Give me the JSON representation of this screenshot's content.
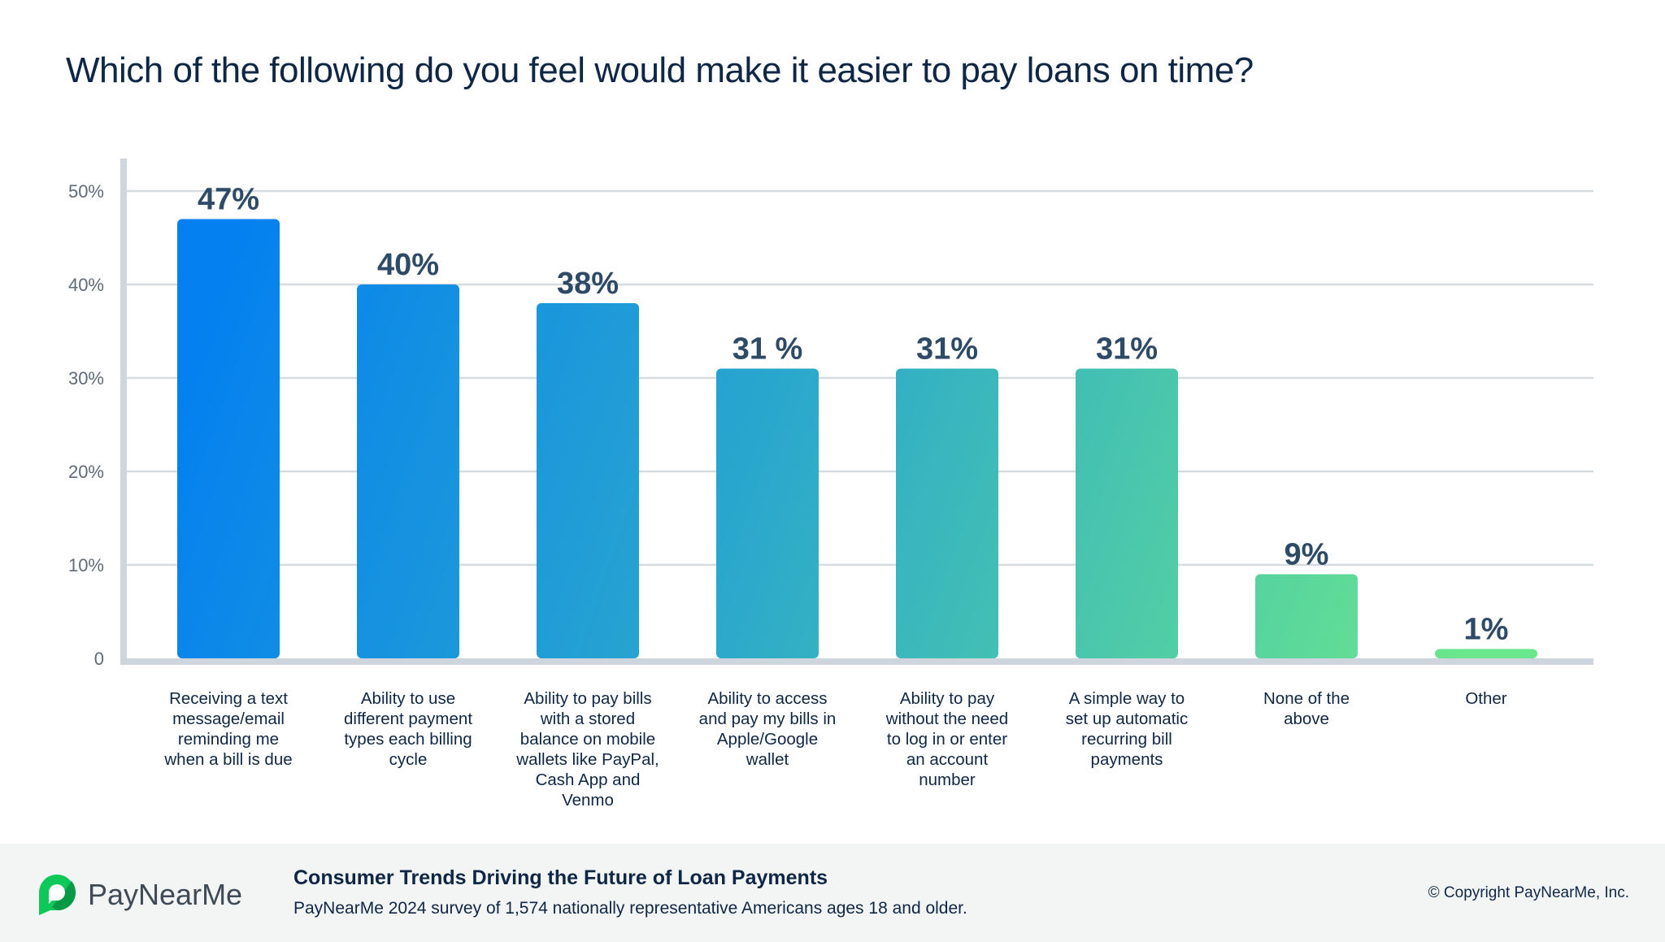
{
  "chart_data": {
    "type": "bar",
    "title": "Which of the following do you feel would make it easier to pay loans on time?",
    "categories": [
      "Receiving a text message/email reminding me when  a bill is due",
      "Ability to use different payment types each billing cycle",
      "Ability to pay bills with a stored balance on mobile wallets like PayPal, Cash App and Venmo",
      "Ability to access and pay my bills in Apple/Google wallet",
      "Ability to pay without the need to log in or enter an account number",
      "A simple way to set up automatic recurring bill payments",
      "None of the above",
      "Other"
    ],
    "category_lines": [
      [
        "Receiving a text",
        "message/email",
        "reminding me",
        "when  a bill is due"
      ],
      [
        "Ability to use",
        "different payment",
        "types each billing",
        "cycle"
      ],
      [
        "Ability to pay bills",
        "with a stored",
        "balance on mobile",
        "wallets like PayPal,",
        "Cash App and",
        "Venmo"
      ],
      [
        "Ability to access",
        "and pay my bills in",
        "Apple/Google",
        "wallet"
      ],
      [
        "Ability to pay",
        "without the need",
        "to log in or enter",
        "an account",
        "number"
      ],
      [
        "A simple way to",
        "set up automatic",
        "recurring bill",
        "payments"
      ],
      [
        "None of the",
        "above"
      ],
      [
        "Other"
      ]
    ],
    "values": [
      47,
      40,
      38,
      31,
      31,
      31,
      9,
      1
    ],
    "data_labels": [
      "47%",
      "40%",
      "38%",
      "31 %",
      "31%",
      "31%",
      "9%",
      "1%"
    ],
    "yticks": [
      "0",
      "10%",
      "20%",
      "30%",
      "40%",
      "50%"
    ],
    "ylim": [
      0,
      50
    ],
    "xlabel": "",
    "ylabel": "",
    "grid": true,
    "colors": {
      "gradient_start": "#0480f0",
      "gradient_end": "#6ae68c",
      "label": "#2f4a66",
      "grid": "#d6dbe0",
      "axis": "#cfd5dc"
    }
  },
  "footer": {
    "brand": "PayNearMe",
    "title": "Consumer Trends Driving the Future of Loan Payments",
    "subtitle": "PayNearMe 2024 survey of 1,574 nationally representative Americans ages 18 and older.",
    "copyright": "© Copyright PayNearMe, Inc.",
    "brand_color": "#0ec95a"
  }
}
